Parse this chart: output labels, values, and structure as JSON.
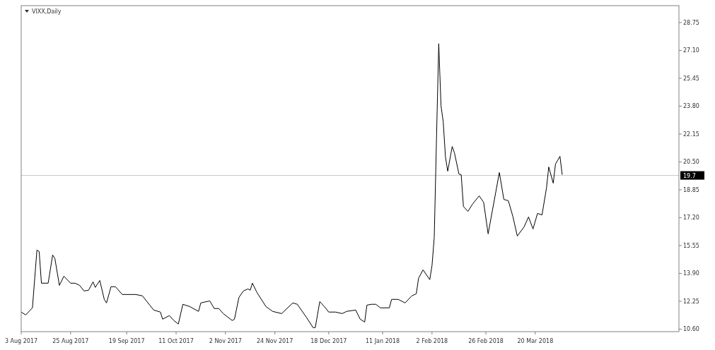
{
  "chart_data": {
    "type": "line",
    "title": "VIXX,Daily",
    "xlim": [
      "2017-08-03",
      "2018-05-23"
    ],
    "xticks": [
      {
        "value": "2017-08-03",
        "label": "3 Aug 2017"
      },
      {
        "value": "2017-08-25",
        "label": "25 Aug 2017"
      },
      {
        "value": "2017-09-19",
        "label": "19 Sep 2017"
      },
      {
        "value": "2017-10-11",
        "label": "11 Oct 2017"
      },
      {
        "value": "2017-11-02",
        "label": "2 Nov 2017"
      },
      {
        "value": "2017-11-24",
        "label": "24 Nov 2017"
      },
      {
        "value": "2017-12-18",
        "label": "18 Dec 2017"
      },
      {
        "value": "2018-01-11",
        "label": "11 Jan 2018"
      },
      {
        "value": "2018-02-02",
        "label": "2 Feb 2018"
      },
      {
        "value": "2018-02-26",
        "label": "26 Feb 2018"
      },
      {
        "value": "2018-03-20",
        "label": "20 Mar 2018"
      }
    ],
    "ylim": [
      10.45,
      29.75
    ],
    "yticks": [
      {
        "value": 10.6,
        "label": "10.60"
      },
      12.25,
      {
        "value": 13.9,
        "label": "13.90"
      },
      15.55,
      {
        "value": 17.2,
        "label": "17.20"
      },
      18.85,
      {
        "value": 20.5,
        "label": "20.50"
      },
      22.15,
      {
        "value": 23.8,
        "label": "23.80"
      },
      25.45,
      {
        "value": 27.1,
        "label": "27.10"
      },
      28.75
    ],
    "ref_lines": [
      {
        "axis": "y",
        "value": 19.7,
        "label": "19.7",
        "color": "#c8c8c8"
      }
    ],
    "grid": false,
    "series": [
      {
        "color": "#000000",
        "x": [
          "2017-08-03",
          "2017-08-05",
          "2017-08-08",
          "2017-08-10",
          "2017-08-11",
          "2017-08-12",
          "2017-08-15",
          "2017-08-17",
          "2017-08-18",
          "2017-08-20",
          "2017-08-22",
          "2017-08-25",
          "2017-08-27",
          "2017-08-29",
          "2017-08-31",
          "2017-09-02",
          "2017-09-04",
          "2017-09-05",
          "2017-09-07",
          "2017-09-09",
          "2017-09-10",
          "2017-09-12",
          "2017-09-14",
          "2017-09-17",
          "2017-09-23",
          "2017-09-26",
          "2017-10-01",
          "2017-10-04",
          "2017-10-05",
          "2017-10-08",
          "2017-10-10",
          "2017-10-12",
          "2017-10-14",
          "2017-10-17",
          "2017-10-21",
          "2017-10-22",
          "2017-10-26",
          "2017-10-28",
          "2017-10-30",
          "2017-11-01",
          "2017-11-05",
          "2017-11-06",
          "2017-11-08",
          "2017-11-10",
          "2017-11-12",
          "2017-11-13",
          "2017-11-14",
          "2017-11-16",
          "2017-11-20",
          "2017-11-23",
          "2017-11-27",
          "2017-12-02",
          "2017-12-04",
          "2017-12-08",
          "2017-12-11",
          "2017-12-12",
          "2017-12-14",
          "2017-12-16",
          "2017-12-18",
          "2017-12-21",
          "2017-12-24",
          "2017-12-26",
          "2017-12-30",
          "2018-01-01",
          "2018-01-03",
          "2018-01-04",
          "2018-01-06",
          "2018-01-08",
          "2018-01-10",
          "2018-01-14",
          "2018-01-15",
          "2018-01-18",
          "2018-01-21",
          "2018-01-24",
          "2018-01-26",
          "2018-01-27",
          "2018-01-29",
          "2018-02-01",
          "2018-02-02",
          "2018-02-03",
          "2018-02-04",
          "2018-02-05",
          "2018-02-06",
          "2018-02-07",
          "2018-02-08",
          "2018-02-09",
          "2018-02-11",
          "2018-02-12",
          "2018-02-14",
          "2018-02-15",
          "2018-02-16",
          "2018-02-18",
          "2018-02-20",
          "2018-02-23",
          "2018-02-25",
          "2018-02-27",
          "2018-03-04",
          "2018-03-06",
          "2018-03-08",
          "2018-03-10",
          "2018-03-12",
          "2018-03-15",
          "2018-03-17",
          "2018-03-19",
          "2018-03-21",
          "2018-03-23",
          "2018-03-25",
          "2018-03-26",
          "2018-03-28",
          "2018-03-29",
          "2018-03-31",
          "2018-04-01"
        ],
        "values": [
          11.61,
          11.44,
          11.86,
          15.28,
          15.19,
          13.32,
          13.32,
          14.99,
          14.78,
          13.19,
          13.73,
          13.32,
          13.32,
          13.19,
          12.86,
          12.9,
          13.4,
          13.07,
          13.48,
          12.36,
          12.15,
          13.11,
          13.11,
          12.65,
          12.65,
          12.57,
          11.73,
          11.61,
          11.19,
          11.4,
          11.11,
          10.9,
          12.07,
          11.94,
          11.65,
          12.15,
          12.27,
          11.82,
          11.82,
          11.52,
          11.11,
          11.19,
          12.48,
          12.86,
          12.98,
          12.9,
          13.32,
          12.77,
          11.94,
          11.65,
          11.52,
          12.15,
          12.07,
          11.31,
          10.69,
          10.69,
          12.23,
          11.94,
          11.61,
          11.61,
          11.52,
          11.65,
          11.73,
          11.19,
          11.02,
          12.02,
          12.07,
          12.07,
          11.86,
          11.86,
          12.36,
          12.36,
          12.15,
          12.57,
          12.69,
          13.61,
          14.11,
          13.53,
          14.36,
          16.03,
          21.87,
          27.5,
          23.83,
          22.87,
          20.78,
          19.95,
          21.41,
          21.03,
          19.78,
          19.74,
          17.86,
          17.57,
          17.99,
          18.49,
          18.11,
          16.24,
          19.87,
          18.28,
          18.2,
          17.28,
          16.11,
          16.65,
          17.24,
          16.53,
          17.45,
          17.36,
          18.95,
          20.2,
          19.24,
          20.37,
          20.83,
          19.74
        ]
      }
    ]
  }
}
